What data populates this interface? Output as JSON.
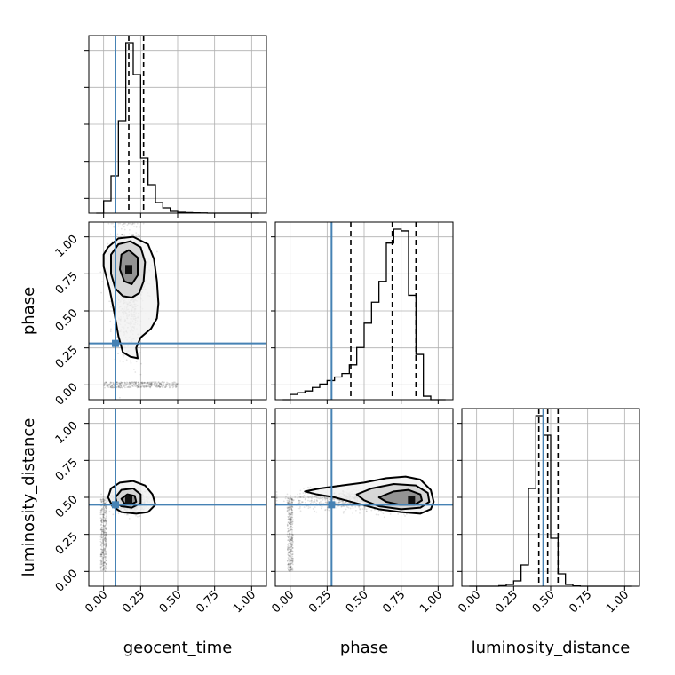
{
  "chart_data": {
    "type": "corner",
    "parameters": [
      "geocent_time",
      "phase",
      "luminosity_distance"
    ],
    "axis_range": [
      -0.1,
      1.1
    ],
    "ticks": [
      0.0,
      0.25,
      0.5,
      0.75,
      1.0
    ],
    "tick_labels": [
      "0.00",
      "0.25",
      "0.50",
      "0.75",
      "1.00"
    ],
    "grid": true,
    "truths": {
      "geocent_time": 0.08,
      "phase": 0.28,
      "luminosity_distance": 0.45
    },
    "quantiles": {
      "geocent_time": [
        0.08,
        0.17,
        0.27
      ],
      "phase": [
        0.41,
        0.69,
        0.85
      ],
      "luminosity_distance": [
        0.42,
        0.48,
        0.55
      ]
    },
    "histograms": {
      "geocent_time": {
        "bins": [
          -0.05,
          0.0,
          0.05,
          0.1,
          0.15,
          0.2,
          0.25,
          0.3,
          0.35,
          0.4,
          0.45,
          0.5,
          0.55,
          0.6,
          0.65,
          0.7,
          0.75,
          0.8,
          0.85,
          0.9,
          0.95,
          1.0,
          1.05
        ],
        "counts": [
          0.0,
          0.07,
          0.21,
          0.52,
          0.96,
          0.78,
          0.31,
          0.16,
          0.06,
          0.03,
          0.01,
          0.005,
          0.003,
          0.002,
          0.001,
          0.0,
          0.0,
          0.0,
          0.0,
          0.0,
          0.0,
          0.0
        ]
      },
      "phase": {
        "bins": [
          -0.05,
          0.0,
          0.05,
          0.1,
          0.15,
          0.2,
          0.25,
          0.3,
          0.35,
          0.4,
          0.45,
          0.5,
          0.55,
          0.6,
          0.65,
          0.7,
          0.75,
          0.8,
          0.85,
          0.9,
          0.95,
          1.0,
          1.05
        ],
        "counts": [
          0.0,
          0.03,
          0.04,
          0.05,
          0.07,
          0.09,
          0.11,
          0.13,
          0.15,
          0.2,
          0.3,
          0.44,
          0.56,
          0.68,
          0.9,
          0.98,
          0.97,
          0.6,
          0.26,
          0.02,
          0.0,
          0.0
        ]
      },
      "luminosity_distance": {
        "bins": [
          -0.05,
          0.0,
          0.05,
          0.1,
          0.15,
          0.2,
          0.25,
          0.3,
          0.35,
          0.4,
          0.45,
          0.5,
          0.55,
          0.6,
          0.65,
          0.7,
          0.75,
          0.8,
          0.85,
          0.9,
          0.95,
          1.0,
          1.05
        ],
        "counts": [
          0.0,
          0.0,
          0.0,
          0.0,
          0.003,
          0.01,
          0.03,
          0.12,
          0.55,
          0.96,
          0.85,
          0.27,
          0.07,
          0.01,
          0.002,
          0.0,
          0.0,
          0.0,
          0.0,
          0.0,
          0.0,
          0.0
        ]
      }
    },
    "scatter_pairs": [
      {
        "x": "geocent_time",
        "y": "phase",
        "mode": {
          "x": 0.17,
          "y": 0.78
        },
        "levels": [
          {
            "label": "outer",
            "points": [
              [
                0.03,
                0.93
              ],
              [
                0.1,
                0.99
              ],
              [
                0.2,
                1.0
              ],
              [
                0.3,
                0.95
              ],
              [
                0.34,
                0.85
              ],
              [
                0.36,
                0.7
              ],
              [
                0.37,
                0.55
              ],
              [
                0.36,
                0.45
              ],
              [
                0.32,
                0.38
              ],
              [
                0.25,
                0.32
              ],
              [
                0.22,
                0.25
              ],
              [
                0.23,
                0.18
              ],
              [
                0.18,
                0.19
              ],
              [
                0.13,
                0.22
              ],
              [
                0.1,
                0.33
              ],
              [
                0.07,
                0.5
              ],
              [
                0.04,
                0.65
              ],
              [
                0.0,
                0.8
              ],
              [
                0.0,
                0.88
              ]
            ]
          },
          {
            "label": "middle",
            "points": [
              [
                0.05,
                0.88
              ],
              [
                0.1,
                0.95
              ],
              [
                0.18,
                0.97
              ],
              [
                0.25,
                0.93
              ],
              [
                0.28,
                0.83
              ],
              [
                0.27,
                0.7
              ],
              [
                0.24,
                0.62
              ],
              [
                0.19,
                0.59
              ],
              [
                0.13,
                0.6
              ],
              [
                0.08,
                0.65
              ],
              [
                0.05,
                0.75
              ]
            ]
          },
          {
            "label": "inner",
            "points": [
              [
                0.12,
                0.88
              ],
              [
                0.17,
                0.91
              ],
              [
                0.23,
                0.86
              ],
              [
                0.23,
                0.74
              ],
              [
                0.19,
                0.68
              ],
              [
                0.14,
                0.7
              ],
              [
                0.11,
                0.78
              ]
            ]
          }
        ],
        "uniform_strip": {
          "x": [
            0.0,
            0.5
          ],
          "y": [
            -0.02,
            0.02
          ]
        }
      },
      {
        "x": "geocent_time",
        "y": "luminosity_distance",
        "mode": {
          "x": 0.17,
          "y": 0.48
        },
        "levels": [
          {
            "label": "outer",
            "points": [
              [
                0.03,
                0.5
              ],
              [
                0.05,
                0.56
              ],
              [
                0.11,
                0.6
              ],
              [
                0.2,
                0.61
              ],
              [
                0.28,
                0.58
              ],
              [
                0.33,
                0.52
              ],
              [
                0.35,
                0.45
              ],
              [
                0.3,
                0.4
              ],
              [
                0.22,
                0.39
              ],
              [
                0.12,
                0.4
              ],
              [
                0.06,
                0.44
              ]
            ]
          },
          {
            "label": "middle",
            "points": [
              [
                0.08,
                0.5
              ],
              [
                0.12,
                0.55
              ],
              [
                0.2,
                0.56
              ],
              [
                0.25,
                0.52
              ],
              [
                0.25,
                0.46
              ],
              [
                0.19,
                0.43
              ],
              [
                0.12,
                0.44
              ],
              [
                0.09,
                0.46
              ]
            ]
          },
          {
            "label": "inner",
            "points": [
              [
                0.12,
                0.49
              ],
              [
                0.16,
                0.52
              ],
              [
                0.21,
                0.51
              ],
              [
                0.22,
                0.47
              ],
              [
                0.18,
                0.45
              ],
              [
                0.14,
                0.46
              ]
            ]
          }
        ],
        "uniform_strip": {
          "x": [
            -0.02,
            0.02
          ],
          "y": [
            0.0,
            0.5
          ]
        }
      },
      {
        "x": "phase",
        "y": "luminosity_distance",
        "mode": {
          "x": 0.82,
          "y": 0.48
        },
        "levels": [
          {
            "label": "outer",
            "points": [
              [
                0.1,
                0.54
              ],
              [
                0.2,
                0.56
              ],
              [
                0.35,
                0.58
              ],
              [
                0.5,
                0.6
              ],
              [
                0.65,
                0.63
              ],
              [
                0.78,
                0.64
              ],
              [
                0.88,
                0.62
              ],
              [
                0.95,
                0.55
              ],
              [
                0.97,
                0.47
              ],
              [
                0.95,
                0.42
              ],
              [
                0.88,
                0.39
              ],
              [
                0.75,
                0.4
              ],
              [
                0.6,
                0.42
              ],
              [
                0.45,
                0.46
              ],
              [
                0.3,
                0.5
              ],
              [
                0.18,
                0.52
              ]
            ]
          },
          {
            "label": "middle",
            "points": [
              [
                0.45,
                0.52
              ],
              [
                0.55,
                0.56
              ],
              [
                0.7,
                0.59
              ],
              [
                0.85,
                0.58
              ],
              [
                0.93,
                0.53
              ],
              [
                0.94,
                0.47
              ],
              [
                0.88,
                0.43
              ],
              [
                0.75,
                0.42
              ],
              [
                0.6,
                0.44
              ],
              [
                0.5,
                0.48
              ]
            ]
          },
          {
            "label": "inner",
            "points": [
              [
                0.6,
                0.5
              ],
              [
                0.7,
                0.54
              ],
              [
                0.8,
                0.55
              ],
              [
                0.88,
                0.52
              ],
              [
                0.89,
                0.48
              ],
              [
                0.84,
                0.45
              ],
              [
                0.74,
                0.45
              ],
              [
                0.65,
                0.47
              ]
            ]
          }
        ],
        "uniform_strip": {
          "x": [
            -0.02,
            0.02
          ],
          "y": [
            0.0,
            0.5
          ]
        }
      }
    ]
  },
  "colors": {
    "truth": "#4682b4",
    "hist": "#000000",
    "contour": "#000000",
    "grid": "#b0b0b0",
    "spine": "#000000",
    "scatter": "#000000"
  }
}
